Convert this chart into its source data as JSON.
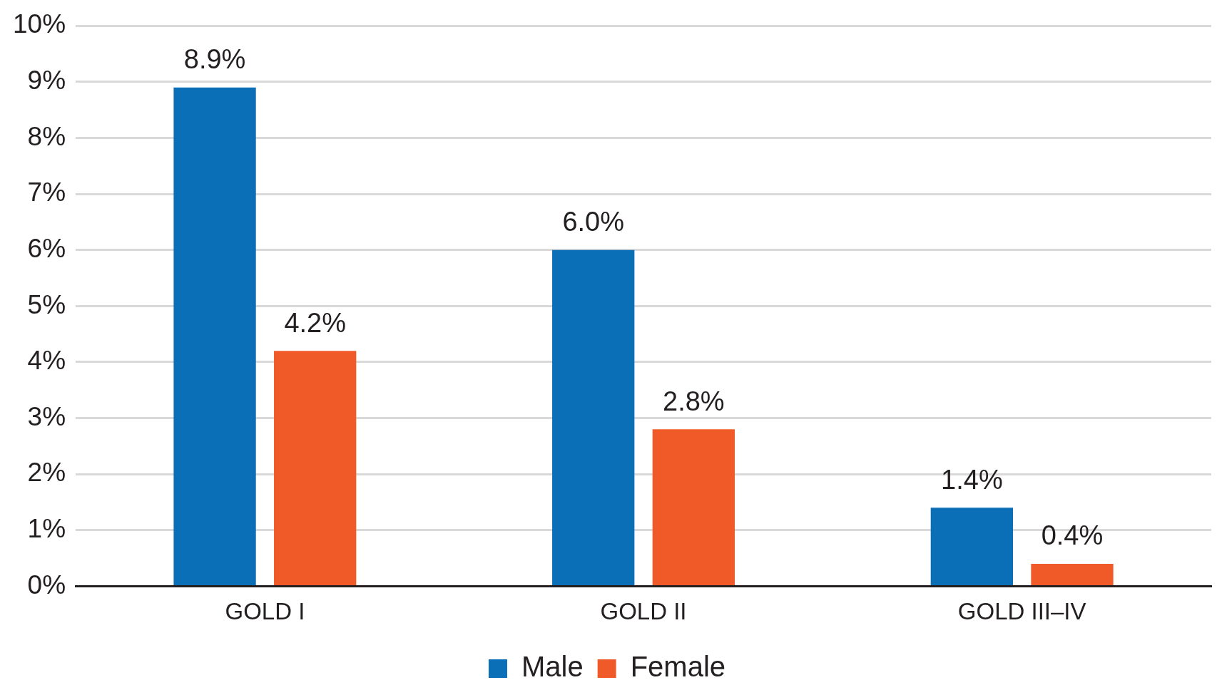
{
  "chart_data": {
    "type": "bar",
    "categories": [
      "GOLD I",
      "GOLD II",
      "GOLD III–IV"
    ],
    "series": [
      {
        "name": "Male",
        "color": "#0a6fb7",
        "values": [
          8.9,
          6.0,
          1.4
        ],
        "value_labels": [
          "8.9%",
          "6.0%",
          "1.4%"
        ]
      },
      {
        "name": "Female",
        "color": "#f05a28",
        "values": [
          4.2,
          2.8,
          0.4
        ],
        "value_labels": [
          "4.2%",
          "2.8%",
          "0.4%"
        ]
      }
    ],
    "ylim": [
      0,
      10
    ],
    "yticks": [
      {
        "value": 0,
        "label": "0%"
      },
      {
        "value": 1,
        "label": "1%"
      },
      {
        "value": 2,
        "label": "2%"
      },
      {
        "value": 3,
        "label": "3%"
      },
      {
        "value": 4,
        "label": "4%"
      },
      {
        "value": 5,
        "label": "5%"
      },
      {
        "value": 6,
        "label": "6%"
      },
      {
        "value": 7,
        "label": "7%"
      },
      {
        "value": 8,
        "label": "8%"
      },
      {
        "value": 9,
        "label": "9%"
      },
      {
        "value": 10,
        "label": "10%"
      }
    ],
    "grid": "y",
    "legend": "bottom"
  }
}
